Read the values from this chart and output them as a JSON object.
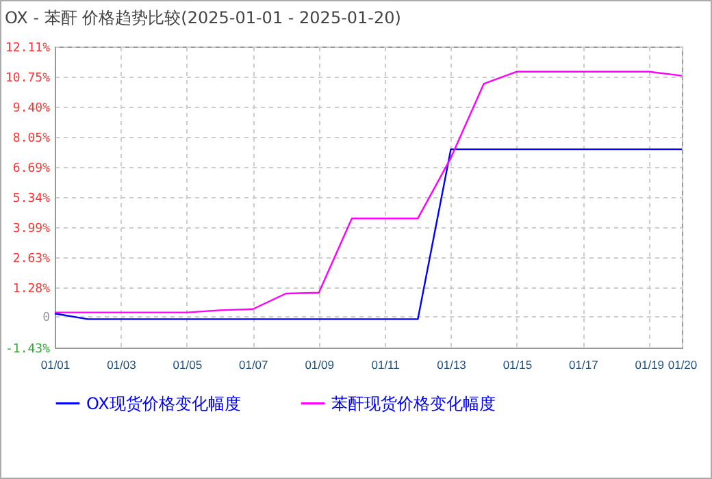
{
  "chart_data": {
    "type": "line",
    "title": "OX - 苯酐 价格趋势比较(2025-01-01 - 2025-01-20)",
    "x": [
      "2025-01-01",
      "2025-01-02",
      "2025-01-03",
      "2025-01-04",
      "2025-01-05",
      "2025-01-06",
      "2025-01-07",
      "2025-01-08",
      "2025-01-09",
      "2025-01-10",
      "2025-01-11",
      "2025-01-12",
      "2025-01-13",
      "2025-01-14",
      "2025-01-15",
      "2025-01-16",
      "2025-01-17",
      "2025-01-18",
      "2025-01-19",
      "2025-01-20"
    ],
    "series": [
      {
        "name": "OX现货价格变化幅度",
        "color": "#0000ff",
        "values": [
          0.1,
          -0.15,
          -0.15,
          -0.15,
          -0.15,
          -0.15,
          -0.15,
          -0.15,
          -0.15,
          -0.15,
          -0.15,
          -0.15,
          7.49,
          7.49,
          7.49,
          7.49,
          7.49,
          7.49,
          7.49,
          7.49
        ]
      },
      {
        "name": "苯酐现货价格变化幅度",
        "color": "#ff00ff",
        "values": [
          0.15,
          0.15,
          0.15,
          0.15,
          0.15,
          0.25,
          0.3,
          1.0,
          1.04,
          4.38,
          4.38,
          4.38,
          7.1,
          10.44,
          10.98,
          10.98,
          10.98,
          10.98,
          10.98,
          10.8
        ]
      }
    ],
    "xlim": [
      "2025-01-01",
      "2025-01-20"
    ],
    "xticks": [
      {
        "value": "2025-01-01",
        "label": "01/01"
      },
      {
        "value": "2025-01-03",
        "label": "01/03"
      },
      {
        "value": "2025-01-05",
        "label": "01/05"
      },
      {
        "value": "2025-01-07",
        "label": "01/07"
      },
      {
        "value": "2025-01-09",
        "label": "01/09"
      },
      {
        "value": "2025-01-11",
        "label": "01/11"
      },
      {
        "value": "2025-01-13",
        "label": "01/13"
      },
      {
        "value": "2025-01-15",
        "label": "01/15"
      },
      {
        "value": "2025-01-17",
        "label": "01/17"
      },
      {
        "value": "2025-01-19",
        "label": "01/19"
      },
      {
        "value": "2025-01-20",
        "label": "01/20"
      }
    ],
    "ylim": [
      -1.43,
      12.11
    ],
    "yticks": [
      {
        "value": -1.43,
        "label": "-1.43%"
      },
      {
        "value": 0,
        "label": "0"
      },
      {
        "value": 1.28,
        "label": "1.28%"
      },
      {
        "value": 2.63,
        "label": "2.63%"
      },
      {
        "value": 3.99,
        "label": "3.99%"
      },
      {
        "value": 5.34,
        "label": "5.34%"
      },
      {
        "value": 6.69,
        "label": "6.69%"
      },
      {
        "value": 8.05,
        "label": "8.05%"
      },
      {
        "value": 9.4,
        "label": "9.40%"
      },
      {
        "value": 10.75,
        "label": "10.75%"
      },
      {
        "value": 12.11,
        "label": "12.11%"
      }
    ],
    "grid": true,
    "legend": "bottom",
    "marker": "none",
    "line_style": "solid"
  }
}
